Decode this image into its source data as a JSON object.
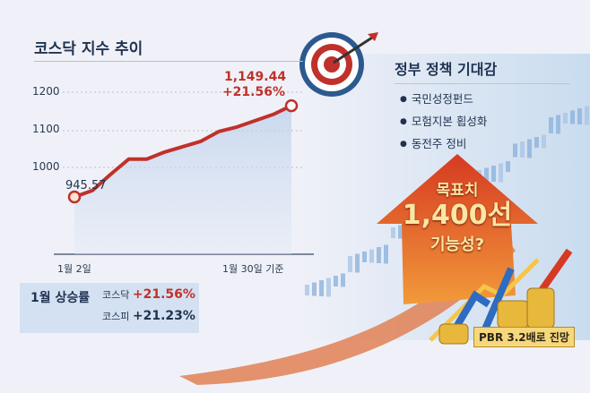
{
  "chart_data": {
    "type": "line",
    "title": "코스닥 지수 추이",
    "x_tick_labels": [
      "1월 2일",
      "1월 30일 기준"
    ],
    "y_ticks": [
      1000,
      1100,
      1200
    ],
    "values": [
      945.57,
      960,
      996,
      1030,
      1030,
      1046,
      1058,
      1070,
      1092,
      1102,
      1116,
      1130,
      1149.44
    ],
    "start_label": "945.57",
    "end_label": "1,149.44",
    "end_change": "+21.56%",
    "line_color": "#c0312b",
    "grid": true
  },
  "policy": {
    "title": "정부 정책 기대감",
    "items": [
      "국민성정펀드",
      "모험지본 횝성화",
      "동전주 정비"
    ]
  },
  "rise": {
    "label": "1월 상승률",
    "rows": [
      {
        "name": "코스닥",
        "value": "+21.56%",
        "color": "#c0312b"
      },
      {
        "name": "코스피",
        "value": "+21.23%",
        "color": "#1f3350"
      }
    ]
  },
  "goal": {
    "line1": "목표치",
    "line2": "1,400선",
    "line3": "기능성?"
  },
  "pbr": "PBR 3.2배로 진망"
}
